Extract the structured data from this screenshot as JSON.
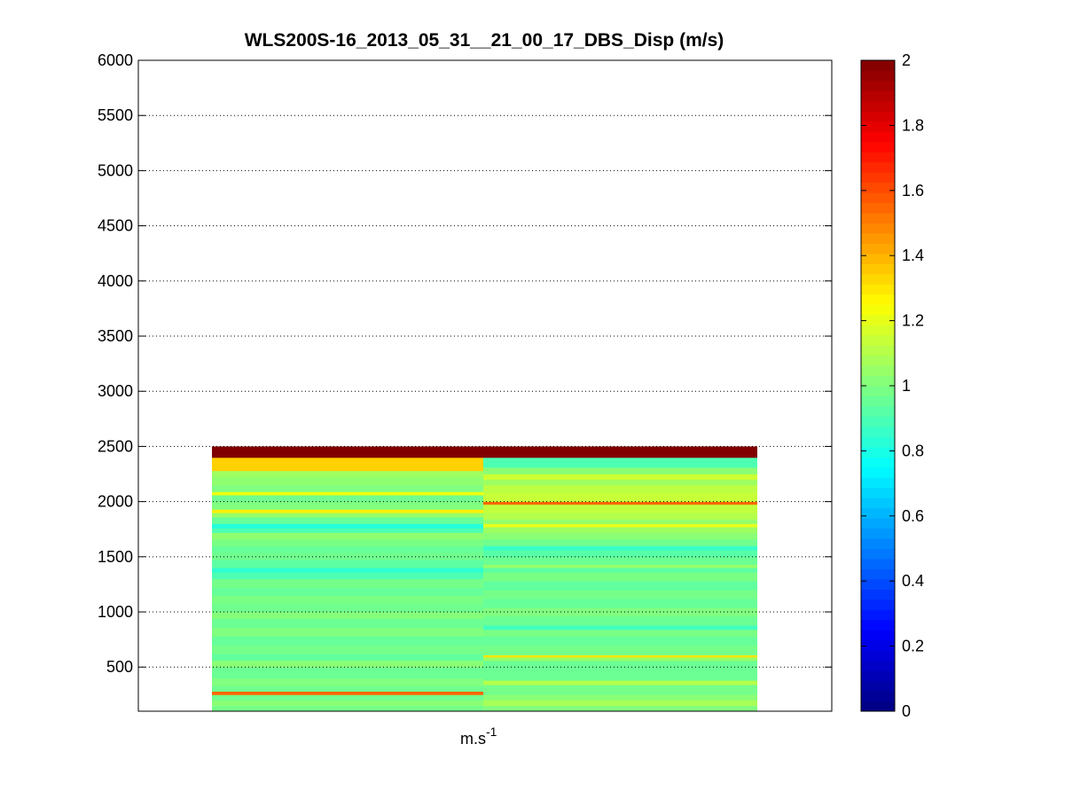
{
  "chart_data": {
    "type": "heatmap",
    "title": "WLS200S-16_2013_05_31__21_00_17_DBS_Disp (m/s)",
    "xlabel": "m.s",
    "xlabel_superscript": "-1",
    "ylabel": "",
    "ylim": [
      100,
      6000
    ],
    "yticks": [
      500,
      1000,
      1500,
      2000,
      2500,
      3000,
      3500,
      4000,
      4500,
      5000,
      5500,
      6000
    ],
    "grid": "horizontal dotted",
    "colormap": "jet",
    "clim": [
      0,
      2
    ],
    "colorbar_ticks": [
      0,
      0.2,
      0.4,
      0.6,
      0.8,
      1,
      1.2,
      1.4,
      1.6,
      1.8,
      2
    ],
    "colorbar_position": "right",
    "columns": [
      {
        "column": 1,
        "cells": [
          {
            "from": 100,
            "to": 150,
            "value": 0.98
          },
          {
            "from": 150,
            "to": 200,
            "value": 1.02
          },
          {
            "from": 200,
            "to": 250,
            "value": 0.97
          },
          {
            "from": 250,
            "to": 280,
            "value": 1.55
          },
          {
            "from": 280,
            "to": 330,
            "value": 0.97
          },
          {
            "from": 330,
            "to": 400,
            "value": 1.0
          },
          {
            "from": 400,
            "to": 500,
            "value": 0.96
          },
          {
            "from": 500,
            "to": 560,
            "value": 1.02
          },
          {
            "from": 560,
            "to": 620,
            "value": 0.94
          },
          {
            "from": 620,
            "to": 700,
            "value": 0.98
          },
          {
            "from": 700,
            "to": 780,
            "value": 0.95
          },
          {
            "from": 780,
            "to": 860,
            "value": 1.0
          },
          {
            "from": 860,
            "to": 940,
            "value": 0.96
          },
          {
            "from": 940,
            "to": 1000,
            "value": 1.01
          },
          {
            "from": 1000,
            "to": 1080,
            "value": 0.97
          },
          {
            "from": 1080,
            "to": 1150,
            "value": 0.99
          },
          {
            "from": 1150,
            "to": 1220,
            "value": 0.95
          },
          {
            "from": 1220,
            "to": 1300,
            "value": 0.98
          },
          {
            "from": 1300,
            "to": 1360,
            "value": 0.9
          },
          {
            "from": 1360,
            "to": 1400,
            "value": 0.84
          },
          {
            "from": 1400,
            "to": 1470,
            "value": 0.93
          },
          {
            "from": 1470,
            "to": 1540,
            "value": 0.97
          },
          {
            "from": 1540,
            "to": 1600,
            "value": 0.95
          },
          {
            "from": 1600,
            "to": 1660,
            "value": 0.99
          },
          {
            "from": 1660,
            "to": 1720,
            "value": 1.03
          },
          {
            "from": 1720,
            "to": 1760,
            "value": 0.9
          },
          {
            "from": 1760,
            "to": 1800,
            "value": 0.82
          },
          {
            "from": 1800,
            "to": 1860,
            "value": 0.95
          },
          {
            "from": 1860,
            "to": 1900,
            "value": 1.05
          },
          {
            "from": 1900,
            "to": 1930,
            "value": 1.28
          },
          {
            "from": 1930,
            "to": 2000,
            "value": 1.0
          },
          {
            "from": 2000,
            "to": 2060,
            "value": 0.97
          },
          {
            "from": 2060,
            "to": 2090,
            "value": 1.22
          },
          {
            "from": 2090,
            "to": 2150,
            "value": 1.0
          },
          {
            "from": 2150,
            "to": 2230,
            "value": 1.03
          },
          {
            "from": 2230,
            "to": 2280,
            "value": 1.06
          },
          {
            "from": 2280,
            "to": 2400,
            "value": 1.34
          },
          {
            "from": 2400,
            "to": 2500,
            "value": 2.0
          }
        ]
      },
      {
        "column": 2,
        "cells": [
          {
            "from": 100,
            "to": 150,
            "value": 1.0
          },
          {
            "from": 150,
            "to": 200,
            "value": 1.08
          },
          {
            "from": 200,
            "to": 250,
            "value": 1.02
          },
          {
            "from": 250,
            "to": 340,
            "value": 0.98
          },
          {
            "from": 340,
            "to": 380,
            "value": 1.1
          },
          {
            "from": 380,
            "to": 560,
            "value": 0.96
          },
          {
            "from": 560,
            "to": 590,
            "value": 1.05
          },
          {
            "from": 590,
            "to": 610,
            "value": 1.3
          },
          {
            "from": 610,
            "to": 700,
            "value": 0.98
          },
          {
            "from": 700,
            "to": 780,
            "value": 0.95
          },
          {
            "from": 780,
            "to": 840,
            "value": 0.99
          },
          {
            "from": 840,
            "to": 880,
            "value": 0.88
          },
          {
            "from": 880,
            "to": 960,
            "value": 0.96
          },
          {
            "from": 960,
            "to": 1040,
            "value": 1.0
          },
          {
            "from": 1040,
            "to": 1120,
            "value": 0.95
          },
          {
            "from": 1120,
            "to": 1200,
            "value": 0.98
          },
          {
            "from": 1200,
            "to": 1280,
            "value": 0.94
          },
          {
            "from": 1280,
            "to": 1360,
            "value": 0.99
          },
          {
            "from": 1360,
            "to": 1400,
            "value": 0.93
          },
          {
            "from": 1400,
            "to": 1430,
            "value": 1.04
          },
          {
            "from": 1430,
            "to": 1500,
            "value": 0.96
          },
          {
            "from": 1500,
            "to": 1560,
            "value": 0.92
          },
          {
            "from": 1560,
            "to": 1600,
            "value": 0.86
          },
          {
            "from": 1600,
            "to": 1660,
            "value": 0.97
          },
          {
            "from": 1660,
            "to": 1720,
            "value": 1.02
          },
          {
            "from": 1720,
            "to": 1770,
            "value": 1.06
          },
          {
            "from": 1770,
            "to": 1800,
            "value": 1.2
          },
          {
            "from": 1800,
            "to": 1840,
            "value": 1.04
          },
          {
            "from": 1840,
            "to": 1900,
            "value": 1.1
          },
          {
            "from": 1900,
            "to": 1975,
            "value": 1.13
          },
          {
            "from": 1975,
            "to": 2000,
            "value": 1.55
          },
          {
            "from": 2000,
            "to": 2080,
            "value": 1.14
          },
          {
            "from": 2080,
            "to": 2150,
            "value": 1.12
          },
          {
            "from": 2150,
            "to": 2200,
            "value": 1.06
          },
          {
            "from": 2200,
            "to": 2250,
            "value": 1.15
          },
          {
            "from": 2250,
            "to": 2310,
            "value": 1.02
          },
          {
            "from": 2310,
            "to": 2400,
            "value": 0.9
          },
          {
            "from": 2400,
            "to": 2500,
            "value": 2.0
          }
        ]
      }
    ]
  }
}
